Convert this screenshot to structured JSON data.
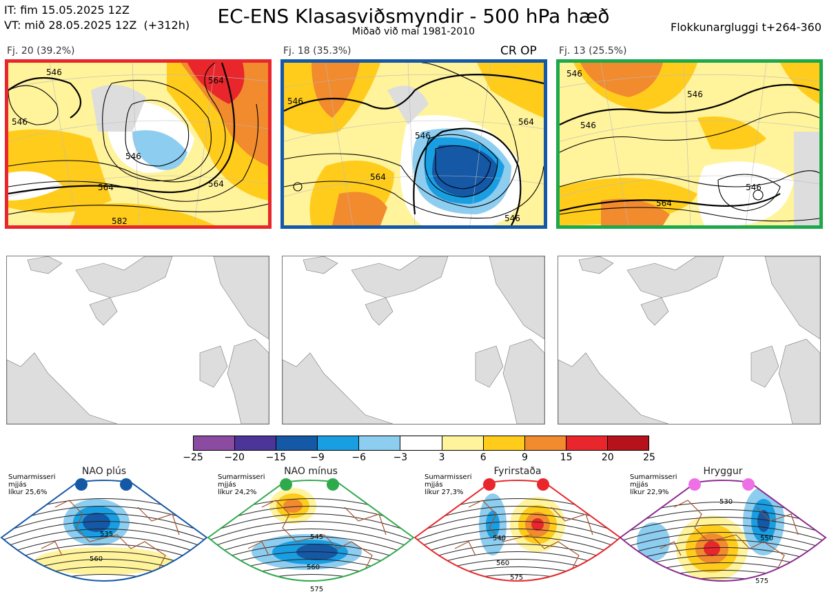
{
  "header": {
    "it": "IT: fim 15.05.2025 12Z",
    "vt": "VT: mið 28.05.2025 12Z  (+312h)",
    "title": "EC-ENS Klasasviðsmyndir - 500 hPa hæð",
    "subtitle": "Miðað við maí 1981-2010",
    "window": "Flokkunargluggi t+264-360"
  },
  "clusters": [
    {
      "label": "Fj. 20 (39.2%)",
      "color": "#e8262b",
      "contours": [
        "546",
        "546",
        "564",
        "564",
        "582",
        "564",
        "546"
      ]
    },
    {
      "label": "Fj. 18 (35.3%)",
      "color": "#1458a6",
      "contours": [
        "546",
        "546",
        "564",
        "564",
        "546"
      ]
    },
    {
      "label": "Fj. 13 (25.5%)",
      "color": "#1da84b",
      "contours": [
        "546",
        "546",
        "564",
        "546",
        "546"
      ]
    }
  ],
  "cr_op": "CR OP",
  "colorbar": {
    "ticks": [
      "−25",
      "−20",
      "−15",
      "−9",
      "−6",
      "−3",
      "3",
      "6",
      "9",
      "15",
      "20",
      "25"
    ],
    "colors": [
      "#8b4ba0",
      "#4b3599",
      "#1458a6",
      "#1a9ee2",
      "#8dcdf0",
      "#ffffff",
      "#fff39b",
      "#ffcc1c",
      "#f28a2e",
      "#e8262b",
      "#b5121b"
    ]
  },
  "regimes": [
    {
      "title": "NAO plús",
      "info": [
        "Sumarmisseri",
        "mjjás",
        "líkur 25,6%"
      ],
      "color": "#1458a6",
      "dot": "#1458a6",
      "labels": [
        "535",
        "560"
      ]
    },
    {
      "title": "NAO mínus",
      "info": [
        "Sumarmisseri",
        "mjjás",
        "líkur 24,2%"
      ],
      "color": "#2eaa4b",
      "dot": "#2eaa4b",
      "labels": [
        "545",
        "560",
        "575"
      ]
    },
    {
      "title": "Fyrirstaða",
      "info": [
        "Sumarmisseri",
        "mjjás",
        "líkur 27,3%"
      ],
      "color": "#e8262b",
      "dot": "#e8262b",
      "labels": [
        "540",
        "560",
        "575"
      ]
    },
    {
      "title": "Hryggur",
      "info": [
        "Sumarmisseri",
        "mjjás",
        "líkur 22,9%"
      ],
      "color": "#8b2a90",
      "dot": "#ee6fe6",
      "labels": [
        "530",
        "550",
        "575"
      ]
    }
  ]
}
